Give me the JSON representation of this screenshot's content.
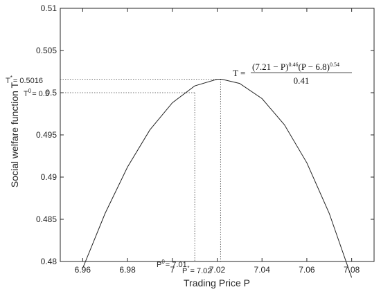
{
  "chart_data": {
    "type": "line",
    "xlabel": "Trading Price P",
    "ylabel": "Social welfare function T",
    "xlim": [
      6.95,
      7.09
    ],
    "ylim": [
      0.48,
      0.51
    ],
    "xticks": [
      "6.96",
      "6.98",
      "7",
      "7.02",
      "7.04",
      "7.06",
      "7.08"
    ],
    "yticks": [
      "0.48",
      "0.485",
      "0.49",
      "0.495",
      "0.5",
      "0.505",
      "0.51"
    ],
    "xtick_values": [
      6.96,
      6.98,
      7.0,
      7.02,
      7.04,
      7.06,
      7.08
    ],
    "ytick_values": [
      0.48,
      0.485,
      0.49,
      0.495,
      0.5,
      0.505,
      0.51
    ],
    "grid": false,
    "series": [
      {
        "function": "T = (7.21 - P)^0.46 (P - 6.8)^0.54 / 0.41",
        "x": [
          6.96,
          6.97,
          6.98,
          6.99,
          7.0,
          7.01,
          7.02,
          7.022,
          7.03,
          7.04,
          7.05,
          7.06,
          7.07,
          7.08
        ],
        "y": [
          0.4792,
          0.4857,
          0.4912,
          0.4956,
          0.4988,
          0.5008,
          0.5016,
          0.5016,
          0.5011,
          0.4993,
          0.4962,
          0.4917,
          0.4857,
          0.4781
        ]
      }
    ],
    "reference_points": [
      {
        "p": 7.0215,
        "t": 0.5016
      },
      {
        "p": 7.01,
        "t": 0.5
      }
    ],
    "annotations": {
      "t_star": {
        "symbol": "T",
        "sup": "*",
        "value": "= 0.5016"
      },
      "t_zero": {
        "symbol": "T",
        "sup": "0",
        "value": "= 0.5"
      },
      "p_zero": {
        "symbol": "P",
        "sup": "0",
        "value": "= 7.01"
      },
      "p_star": {
        "symbol": "P",
        "sup": "*",
        "value": "= 7.02"
      },
      "formula": {
        "lhs": "T =",
        "numerator": [
          "(7.21 − P)",
          "0.46",
          "(P − 6.8)",
          "0.54"
        ],
        "denominator": "0.41"
      }
    }
  }
}
